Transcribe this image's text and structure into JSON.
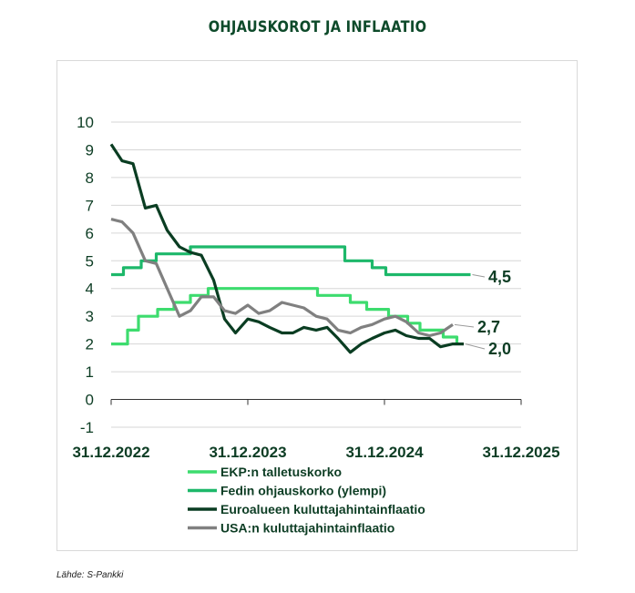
{
  "title": "OHJAUSKOROT JA INFLAATIO",
  "source": "Lähde: S-Pankki",
  "chart_data": {
    "type": "line",
    "title": "OHJAUSKOROT JA INFLAATIO",
    "xlabel": "",
    "ylabel": "",
    "x_ticks": [
      "31.12.2022",
      "31.12.2023",
      "31.12.2024",
      "31.12.2025"
    ],
    "x_range": [
      2022.92,
      2025.92
    ],
    "ylim": [
      -1,
      10
    ],
    "y_ticks": [
      "10",
      "9",
      "8",
      "7",
      "6",
      "5",
      "4",
      "3",
      "2",
      "1",
      "0",
      "-1"
    ],
    "grid": true,
    "legend_position": "bottom",
    "series": [
      {
        "name": "EKP:n talletuskorko",
        "color": "#3ddc6e",
        "step": true,
        "points": [
          [
            2022.92,
            2.0
          ],
          [
            2023.04,
            2.5
          ],
          [
            2023.12,
            3.0
          ],
          [
            2023.26,
            3.25
          ],
          [
            2023.38,
            3.5
          ],
          [
            2023.5,
            3.75
          ],
          [
            2023.63,
            4.0
          ],
          [
            2024.43,
            3.75
          ],
          [
            2024.67,
            3.5
          ],
          [
            2024.79,
            3.25
          ],
          [
            2024.95,
            3.0
          ],
          [
            2025.09,
            2.75
          ],
          [
            2025.18,
            2.5
          ],
          [
            2025.35,
            2.25
          ],
          [
            2025.45,
            2.0
          ]
        ]
      },
      {
        "name": "Fedin ohjauskorko (ylempi)",
        "color": "#1db86a",
        "step": true,
        "points": [
          [
            2022.92,
            4.5
          ],
          [
            2023.01,
            4.75
          ],
          [
            2023.14,
            5.0
          ],
          [
            2023.25,
            5.25
          ],
          [
            2023.5,
            5.5
          ],
          [
            2024.63,
            5.0
          ],
          [
            2024.83,
            4.75
          ],
          [
            2024.93,
            4.5
          ],
          [
            2025.55,
            4.5
          ]
        ]
      },
      {
        "name": "Euroalueen kuluttajahintainflaatio",
        "color": "#0a3d22",
        "step": false,
        "points": [
          [
            2022.92,
            9.2
          ],
          [
            2023.0,
            8.6
          ],
          [
            2023.08,
            8.5
          ],
          [
            2023.17,
            6.9
          ],
          [
            2023.25,
            7.0
          ],
          [
            2023.33,
            6.1
          ],
          [
            2023.42,
            5.5
          ],
          [
            2023.5,
            5.3
          ],
          [
            2023.58,
            5.2
          ],
          [
            2023.67,
            4.3
          ],
          [
            2023.75,
            2.9
          ],
          [
            2023.83,
            2.4
          ],
          [
            2023.92,
            2.9
          ],
          [
            2024.0,
            2.8
          ],
          [
            2024.08,
            2.6
          ],
          [
            2024.17,
            2.4
          ],
          [
            2024.25,
            2.4
          ],
          [
            2024.33,
            2.6
          ],
          [
            2024.42,
            2.5
          ],
          [
            2024.5,
            2.6
          ],
          [
            2024.58,
            2.2
          ],
          [
            2024.67,
            1.7
          ],
          [
            2024.75,
            2.0
          ],
          [
            2024.83,
            2.2
          ],
          [
            2024.92,
            2.4
          ],
          [
            2025.0,
            2.5
          ],
          [
            2025.08,
            2.3
          ],
          [
            2025.17,
            2.2
          ],
          [
            2025.25,
            2.2
          ],
          [
            2025.33,
            1.9
          ],
          [
            2025.42,
            2.0
          ],
          [
            2025.5,
            2.0
          ]
        ]
      },
      {
        "name": "USA:n kuluttajahintainflaatio",
        "color": "#808080",
        "step": false,
        "points": [
          [
            2022.92,
            6.5
          ],
          [
            2023.0,
            6.4
          ],
          [
            2023.08,
            6.0
          ],
          [
            2023.17,
            5.0
          ],
          [
            2023.25,
            4.9
          ],
          [
            2023.33,
            4.0
          ],
          [
            2023.42,
            3.0
          ],
          [
            2023.5,
            3.2
          ],
          [
            2023.58,
            3.7
          ],
          [
            2023.67,
            3.7
          ],
          [
            2023.75,
            3.2
          ],
          [
            2023.83,
            3.1
          ],
          [
            2023.92,
            3.4
          ],
          [
            2024.0,
            3.1
          ],
          [
            2024.08,
            3.2
          ],
          [
            2024.17,
            3.5
          ],
          [
            2024.25,
            3.4
          ],
          [
            2024.33,
            3.3
          ],
          [
            2024.42,
            3.0
          ],
          [
            2024.5,
            2.9
          ],
          [
            2024.58,
            2.5
          ],
          [
            2024.67,
            2.4
          ],
          [
            2024.75,
            2.6
          ],
          [
            2024.83,
            2.7
          ],
          [
            2024.92,
            2.9
          ],
          [
            2025.0,
            3.0
          ],
          [
            2025.08,
            2.8
          ],
          [
            2025.17,
            2.4
          ],
          [
            2025.25,
            2.3
          ],
          [
            2025.33,
            2.4
          ],
          [
            2025.42,
            2.7
          ]
        ]
      }
    ],
    "end_labels": [
      {
        "text": "4,5",
        "series": 1,
        "value": 4.5
      },
      {
        "text": "2,7",
        "series": 3,
        "value": 2.7
      },
      {
        "text": "2,0",
        "series": 2,
        "value": 2.0
      }
    ]
  }
}
